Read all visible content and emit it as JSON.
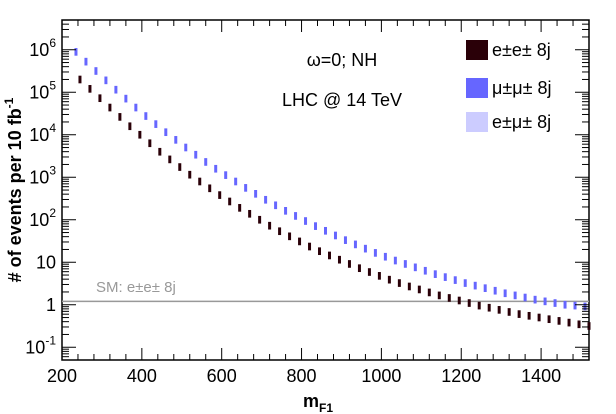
{
  "chart_data": {
    "type": "scatter",
    "xlabel": "m",
    "xlabel_sub": "F1",
    "ylabel": "# of events per 10 fb",
    "ylabel_sup": "-1",
    "xlim": [
      200,
      1520
    ],
    "ylim_log10": [
      -1.3,
      6.7
    ],
    "y_scale": "log",
    "x_ticks": [
      200,
      400,
      600,
      800,
      1000,
      1200,
      1400
    ],
    "x_tick_labels": [
      "200",
      "400",
      "600",
      "800",
      "1000",
      "1200",
      "1400"
    ],
    "y_ticks": [
      {
        "base": "10",
        "exp": "-1",
        "value": 0.1
      },
      {
        "base": "1",
        "exp": "",
        "value": 1
      },
      {
        "base": "10",
        "exp": "",
        "value": 10
      },
      {
        "base": "10",
        "exp": "2",
        "value": 100
      },
      {
        "base": "10",
        "exp": "3",
        "value": 1000
      },
      {
        "base": "10",
        "exp": "4",
        "value": 10000
      },
      {
        "base": "10",
        "exp": "5",
        "value": 100000
      },
      {
        "base": "10",
        "exp": "6",
        "value": 1000000
      }
    ],
    "annotations": {
      "line1": "ω=0;  NH",
      "line2": "LHC @ 14 TeV"
    },
    "sm_line": {
      "value": 1.2,
      "label": "SM: e±e± 8j",
      "color": "#999999"
    },
    "series": [
      {
        "name": "e±e± 8j",
        "color": "#2a0008",
        "x": [
          240,
          265,
          290,
          315,
          340,
          365,
          390,
          415,
          440,
          465,
          490,
          515,
          540,
          565,
          590,
          615,
          640,
          665,
          690,
          715,
          740,
          765,
          790,
          815,
          840,
          865,
          890,
          915,
          940,
          965,
          990,
          1015,
          1040,
          1065,
          1090,
          1115,
          1140,
          1165,
          1190,
          1215,
          1240,
          1265,
          1290,
          1315,
          1340,
          1365,
          1390,
          1415,
          1440,
          1465,
          1490,
          1515
        ],
        "log10_values": [
          5.3,
          5.08,
          4.86,
          4.64,
          4.42,
          4.2,
          4.0,
          3.8,
          3.6,
          3.42,
          3.24,
          3.06,
          2.9,
          2.74,
          2.58,
          2.43,
          2.28,
          2.14,
          2.0,
          1.86,
          1.73,
          1.61,
          1.49,
          1.37,
          1.26,
          1.16,
          1.06,
          0.96,
          0.86,
          0.77,
          0.68,
          0.59,
          0.51,
          0.43,
          0.36,
          0.29,
          0.22,
          0.16,
          0.1,
          0.04,
          -0.02,
          -0.07,
          -0.12,
          -0.17,
          -0.22,
          -0.26,
          -0.3,
          -0.34,
          -0.38,
          -0.42,
          -0.46,
          -0.5
        ]
      },
      {
        "name": "μ±μ± 8j",
        "color": "#6666ff",
        "x": [
          240,
          265,
          290,
          315,
          340,
          365,
          390,
          415,
          440,
          465,
          490,
          515,
          540,
          565,
          590,
          615,
          640,
          665,
          690,
          715,
          740,
          765,
          790,
          815,
          840,
          865,
          890,
          915,
          940,
          965,
          990,
          1015,
          1040,
          1065,
          1090,
          1115,
          1140,
          1165,
          1190,
          1215,
          1240,
          1265,
          1290,
          1315,
          1340,
          1365,
          1390,
          1415,
          1440,
          1465,
          1490,
          1515
        ],
        "log10_values": [
          5.95,
          5.72,
          5.5,
          5.28,
          5.06,
          4.85,
          4.64,
          4.44,
          4.25,
          4.06,
          3.88,
          3.7,
          3.53,
          3.36,
          3.2,
          3.05,
          2.9,
          2.75,
          2.61,
          2.47,
          2.34,
          2.21,
          2.09,
          1.97,
          1.85,
          1.74,
          1.63,
          1.52,
          1.42,
          1.32,
          1.22,
          1.13,
          1.04,
          0.96,
          0.88,
          0.8,
          0.72,
          0.65,
          0.58,
          0.51,
          0.45,
          0.39,
          0.33,
          0.27,
          0.22,
          0.17,
          0.12,
          0.08,
          0.04,
          0.0,
          -0.02,
          -0.04
        ]
      },
      {
        "name": "e±μ± 8j",
        "color": "#ccccff",
        "x": [],
        "log10_values": []
      }
    ]
  }
}
